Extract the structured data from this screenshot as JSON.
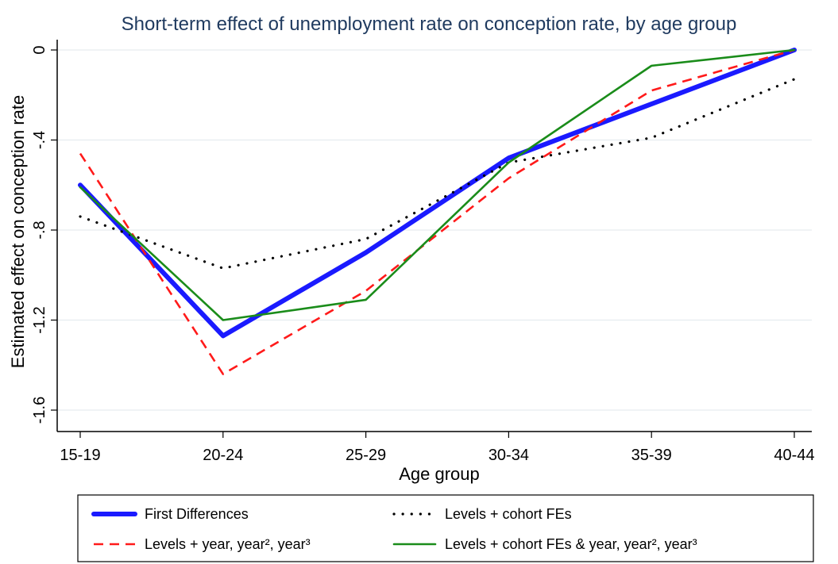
{
  "chart_data": {
    "type": "line",
    "title": "Short-term effect of unemployment rate on conception rate, by age group",
    "xlabel": "Age group",
    "ylabel": "Estimated effect on conception rate",
    "categories": [
      "15-19",
      "20-24",
      "25-29",
      "30-34",
      "35-39",
      "40-44"
    ],
    "ylim": [
      -1.6,
      0
    ],
    "yticks": [
      0,
      -0.4,
      -0.8,
      -1.2,
      -1.6
    ],
    "ytick_labels": [
      "0",
      "-.4",
      "-.8",
      "-1.2",
      "-1.6"
    ],
    "grid": true,
    "legend_position": "bottom",
    "series": [
      {
        "name": "First Differences",
        "values": [
          -0.6,
          -1.27,
          -0.9,
          -0.48,
          -0.24,
          0.0
        ],
        "color": "#1a1aff",
        "style": "thick-solid"
      },
      {
        "name": "Levels + cohort FEs",
        "values": [
          -0.74,
          -0.97,
          -0.84,
          -0.5,
          -0.39,
          -0.13
        ],
        "color": "#000000",
        "style": "dotted"
      },
      {
        "name": "Levels + year, year², year³",
        "values": [
          -0.46,
          -1.44,
          -1.07,
          -0.57,
          -0.18,
          0.0
        ],
        "color": "#ff1a1a",
        "style": "dashed"
      },
      {
        "name": "Levels + cohort FEs & year, year², year³",
        "values": [
          -0.61,
          -1.2,
          -1.11,
          -0.5,
          -0.07,
          0.0
        ],
        "color": "#1a8c1a",
        "style": "solid"
      }
    ]
  }
}
